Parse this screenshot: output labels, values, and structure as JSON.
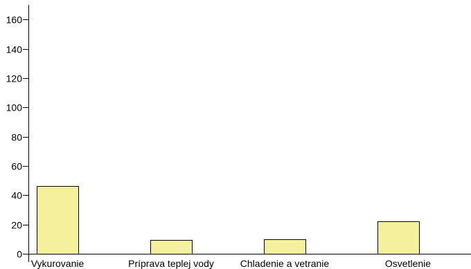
{
  "chart_data": {
    "type": "bar",
    "categories": [
      "Vykurovanie",
      "Príprava teplej vody",
      "Chladenie a vetranie",
      "Osvetlenie"
    ],
    "values": [
      46.5,
      9.5,
      9.8,
      22
    ],
    "ylim": [
      0,
      170
    ],
    "yticks": [
      0,
      20,
      40,
      60,
      80,
      100,
      120,
      140,
      160
    ],
    "ytick_labels": [
      "0",
      "20",
      "40",
      "60",
      "80",
      "100",
      "120",
      "140",
      "160"
    ],
    "grid": false,
    "bar_color": "#f5f09b",
    "bar_edge_color": "#000000"
  }
}
